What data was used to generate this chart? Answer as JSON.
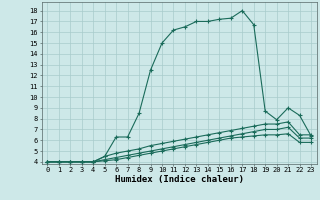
{
  "background_color": "#cde8e8",
  "grid_color": "#a8cccc",
  "line_color": "#1a6b5a",
  "xlabel": "Humidex (Indice chaleur)",
  "xlim": [
    -0.5,
    23.5
  ],
  "ylim": [
    3.8,
    18.8
  ],
  "xticks": [
    0,
    1,
    2,
    3,
    4,
    5,
    6,
    7,
    8,
    9,
    10,
    11,
    12,
    13,
    14,
    15,
    16,
    17,
    18,
    19,
    20,
    21,
    22,
    23
  ],
  "yticks": [
    4,
    5,
    6,
    7,
    8,
    9,
    10,
    11,
    12,
    13,
    14,
    15,
    16,
    17,
    18
  ],
  "series": [
    {
      "x": [
        0,
        1,
        2,
        3,
        4,
        5,
        6,
        7,
        8,
        9,
        10,
        11,
        12,
        13,
        14,
        15,
        16,
        17,
        18,
        19,
        20,
        21,
        22,
        23
      ],
      "y": [
        4,
        4,
        4,
        4,
        4,
        4.5,
        6.3,
        6.3,
        8.5,
        12.5,
        15.0,
        16.2,
        16.5,
        17.0,
        17.0,
        17.2,
        17.3,
        18.0,
        16.7,
        8.7,
        7.9,
        9.0,
        8.3,
        6.4
      ]
    },
    {
      "x": [
        0,
        1,
        2,
        3,
        4,
        5,
        6,
        7,
        8,
        9,
        10,
        11,
        12,
        13,
        14,
        15,
        16,
        17,
        18,
        19,
        20,
        21,
        22,
        23
      ],
      "y": [
        4,
        4,
        4,
        4,
        4,
        4.5,
        4.8,
        5.0,
        5.2,
        5.5,
        5.7,
        5.9,
        6.1,
        6.3,
        6.5,
        6.7,
        6.9,
        7.1,
        7.3,
        7.5,
        7.5,
        7.7,
        6.5,
        6.5
      ]
    },
    {
      "x": [
        0,
        1,
        2,
        3,
        4,
        5,
        6,
        7,
        8,
        9,
        10,
        11,
        12,
        13,
        14,
        15,
        16,
        17,
        18,
        19,
        20,
        21,
        22,
        23
      ],
      "y": [
        4,
        4,
        4,
        4,
        4,
        4.2,
        4.4,
        4.6,
        4.8,
        5.0,
        5.2,
        5.4,
        5.6,
        5.8,
        6.0,
        6.2,
        6.4,
        6.6,
        6.8,
        7.0,
        7.0,
        7.2,
        6.2,
        6.2
      ]
    },
    {
      "x": [
        0,
        1,
        2,
        3,
        4,
        5,
        6,
        7,
        8,
        9,
        10,
        11,
        12,
        13,
        14,
        15,
        16,
        17,
        18,
        19,
        20,
        21,
        22,
        23
      ],
      "y": [
        4,
        4,
        4,
        4,
        4,
        4.1,
        4.2,
        4.4,
        4.6,
        4.8,
        5.0,
        5.2,
        5.4,
        5.6,
        5.8,
        6.0,
        6.2,
        6.3,
        6.4,
        6.5,
        6.5,
        6.6,
        5.8,
        5.8
      ]
    }
  ],
  "font_size_ticks": 5,
  "font_size_xlabel": 6.5,
  "marker_size": 3,
  "line_width": 0.8
}
